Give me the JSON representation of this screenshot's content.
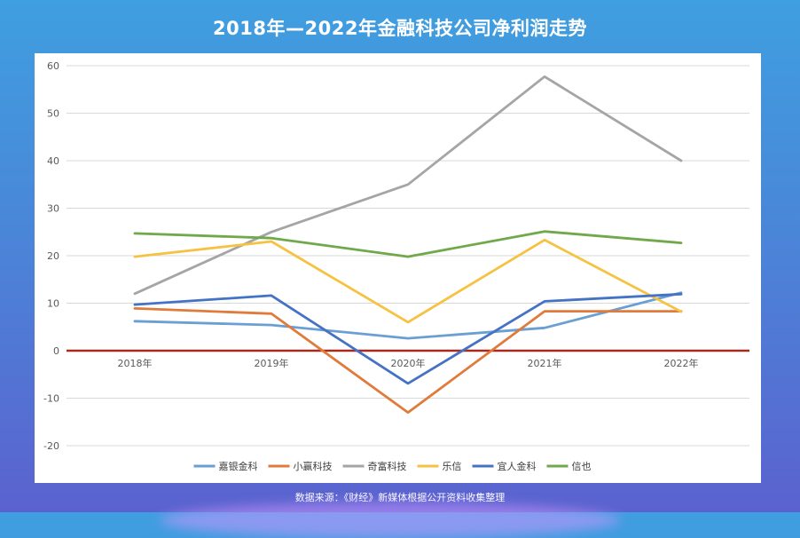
{
  "chart_data": {
    "type": "line",
    "title": "2018年—2022年金融科技公司净利润走势",
    "categories": [
      "2018年",
      "2019年",
      "2020年",
      "2021年",
      "2022年"
    ],
    "ylim": [
      -20,
      60
    ],
    "yticks": [
      -20,
      -10,
      0,
      10,
      20,
      30,
      40,
      50,
      60
    ],
    "grid": true,
    "legend": "bottom",
    "zero_line_color": "#a52a1f",
    "series": [
      {
        "name": "嘉银金科",
        "color": "#6a9fd4",
        "values": [
          6.2,
          5.4,
          2.6,
          4.8,
          12.2
        ]
      },
      {
        "name": "小赢科技",
        "color": "#e07b3c",
        "values": [
          8.9,
          7.8,
          -13.0,
          8.3,
          8.3
        ]
      },
      {
        "name": "奇富科技",
        "color": "#a5a5a5",
        "values": [
          12.0,
          25.0,
          35.0,
          57.7,
          40.0
        ]
      },
      {
        "name": "乐信",
        "color": "#f5c242",
        "values": [
          19.8,
          23.0,
          6.0,
          23.3,
          8.2
        ]
      },
      {
        "name": "宜人金科",
        "color": "#4472c4",
        "values": [
          9.7,
          11.6,
          -6.9,
          10.4,
          11.9
        ]
      },
      {
        "name": "信也",
        "color": "#70a84a",
        "values": [
          24.7,
          23.7,
          19.8,
          25.1,
          22.7
        ]
      }
    ],
    "source": "数据来源：《财经》新媒体根据公开资料收集整理"
  }
}
